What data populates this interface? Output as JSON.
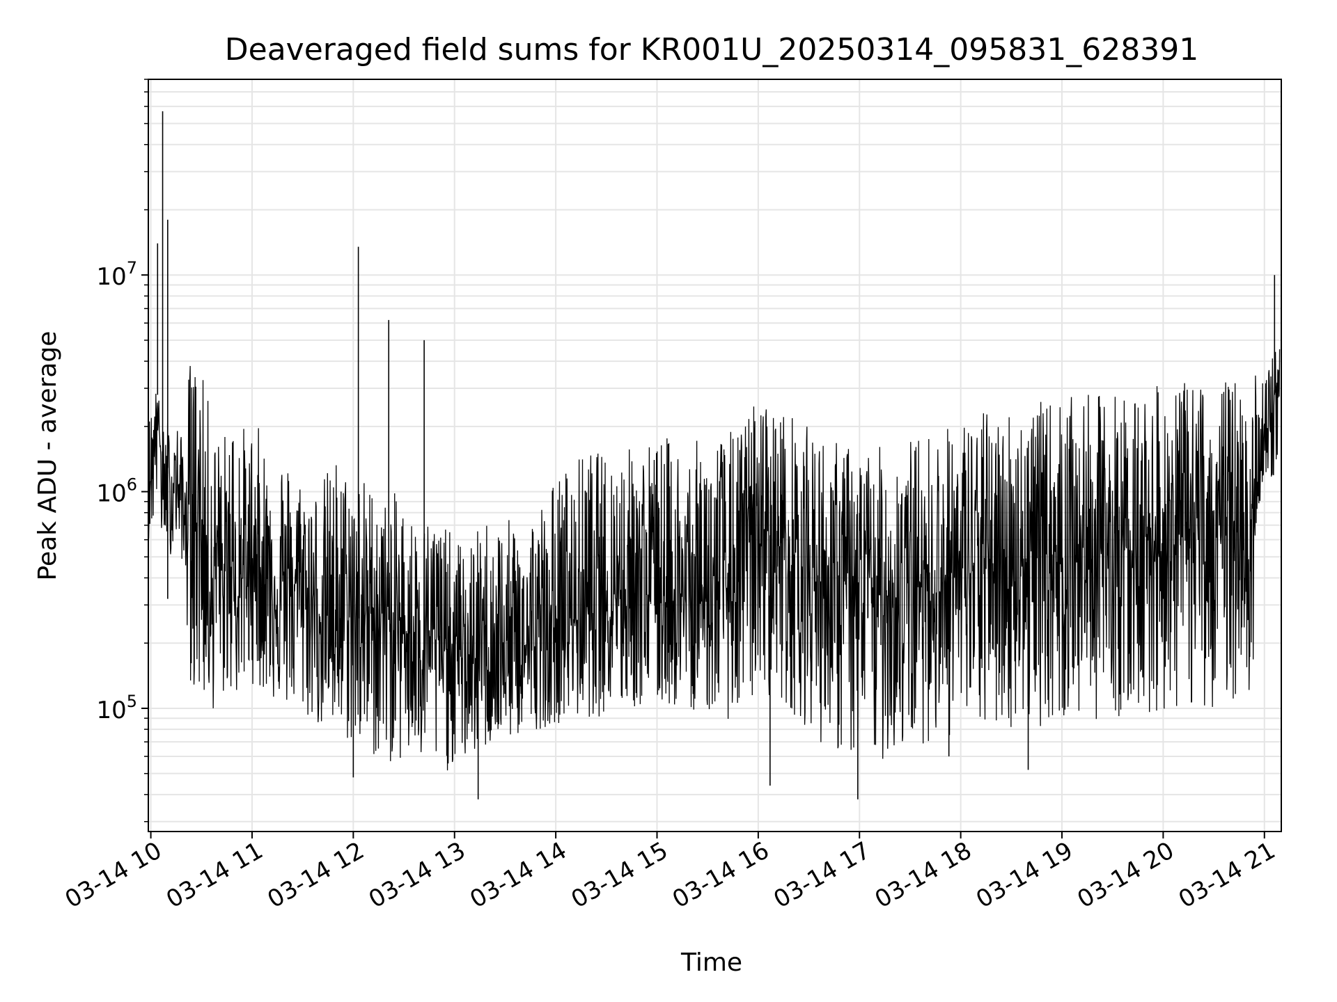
{
  "chart_data": {
    "type": "line",
    "title": "Deaveraged field sums for KR001U_20250314_095831_628391",
    "xlabel": "Time",
    "ylabel": "Peak ADU - average",
    "y_scale": "log",
    "xlim": [
      "2025-03-14 09:58:31",
      "2025-03-14 21:10:00"
    ],
    "ylim": [
      27000,
      80000000
    ],
    "grid": true,
    "line_color": "#000000",
    "grid_color": "#e5e5e5",
    "x_ticks": [
      {
        "value": "2025-03-14 10:00",
        "label": "03-14 10"
      },
      {
        "value": "2025-03-14 11:00",
        "label": "03-14 11"
      },
      {
        "value": "2025-03-14 12:00",
        "label": "03-14 12"
      },
      {
        "value": "2025-03-14 13:00",
        "label": "03-14 13"
      },
      {
        "value": "2025-03-14 14:00",
        "label": "03-14 14"
      },
      {
        "value": "2025-03-14 15:00",
        "label": "03-14 15"
      },
      {
        "value": "2025-03-14 16:00",
        "label": "03-14 16"
      },
      {
        "value": "2025-03-14 17:00",
        "label": "03-14 17"
      },
      {
        "value": "2025-03-14 18:00",
        "label": "03-14 18"
      },
      {
        "value": "2025-03-14 19:00",
        "label": "03-14 19"
      },
      {
        "value": "2025-03-14 20:00",
        "label": "03-14 20"
      },
      {
        "value": "2025-03-14 21:00",
        "label": "03-14 21"
      }
    ],
    "y_ticks": [
      {
        "value": 100000,
        "base": "10",
        "exp": "5"
      },
      {
        "value": 1000000,
        "base": "10",
        "exp": "6"
      },
      {
        "value": 10000000,
        "base": "10",
        "exp": "7"
      }
    ],
    "series": [
      {
        "x": [
          "2025-03-14 09:58:31",
          "2025-03-14 10:02",
          "2025-03-14 10:04",
          "2025-03-14 10:06",
          "2025-03-14 10:08",
          "2025-03-14 10:10",
          "2025-03-14 10:12",
          "2025-03-14 10:14",
          "2025-03-14 10:16",
          "2025-03-14 10:18",
          "2025-03-14 10:20",
          "2025-03-14 10:22",
          "2025-03-14 10:24",
          "2025-03-14 10:26",
          "2025-03-14 10:28",
          "2025-03-14 10:30",
          "2025-03-14 10:33",
          "2025-03-14 10:36",
          "2025-03-14 10:39",
          "2025-03-14 10:42",
          "2025-03-14 10:45",
          "2025-03-14 10:48",
          "2025-03-14 10:51",
          "2025-03-14 10:54",
          "2025-03-14 10:57",
          "2025-03-14 11:00",
          "2025-03-14 11:05",
          "2025-03-14 11:10",
          "2025-03-14 11:15",
          "2025-03-14 11:20",
          "2025-03-14 11:25",
          "2025-03-14 11:30",
          "2025-03-14 11:35",
          "2025-03-14 11:40",
          "2025-03-14 11:45",
          "2025-03-14 11:50",
          "2025-03-14 11:55",
          "2025-03-14 12:00",
          "2025-03-14 12:03",
          "2025-03-14 12:06",
          "2025-03-14 12:10",
          "2025-03-14 12:15",
          "2025-03-14 12:20",
          "2025-03-14 12:25",
          "2025-03-14 12:30",
          "2025-03-14 12:35",
          "2025-03-14 12:40",
          "2025-03-14 12:45",
          "2025-03-14 12:50",
          "2025-03-14 12:55",
          "2025-03-14 13:00",
          "2025-03-14 13:05",
          "2025-03-14 13:10",
          "2025-03-14 13:15",
          "2025-03-14 13:20",
          "2025-03-14 13:25",
          "2025-03-14 13:30",
          "2025-03-14 13:35",
          "2025-03-14 13:40",
          "2025-03-14 13:45",
          "2025-03-14 13:50",
          "2025-03-14 13:55",
          "2025-03-14 14:00",
          "2025-03-14 14:10",
          "2025-03-14 14:20",
          "2025-03-14 14:30",
          "2025-03-14 14:40",
          "2025-03-14 14:50",
          "2025-03-14 15:00",
          "2025-03-14 15:10",
          "2025-03-14 15:20",
          "2025-03-14 15:30",
          "2025-03-14 15:40",
          "2025-03-14 15:50",
          "2025-03-14 15:55",
          "2025-03-14 16:00",
          "2025-03-14 16:10",
          "2025-03-14 16:20",
          "2025-03-14 16:30",
          "2025-03-14 16:40",
          "2025-03-14 16:50",
          "2025-03-14 17:00",
          "2025-03-14 17:10",
          "2025-03-14 17:20",
          "2025-03-14 17:30",
          "2025-03-14 17:40",
          "2025-03-14 17:50",
          "2025-03-14 18:00",
          "2025-03-14 18:15",
          "2025-03-14 18:30",
          "2025-03-14 18:45",
          "2025-03-14 19:00",
          "2025-03-14 19:15",
          "2025-03-14 19:30",
          "2025-03-14 19:45",
          "2025-03-14 20:00",
          "2025-03-14 20:15",
          "2025-03-14 20:30",
          "2025-03-14 20:45",
          "2025-03-14 20:53",
          "2025-03-14 20:57",
          "2025-03-14 21:00",
          "2025-03-14 21:03",
          "2025-03-14 21:06",
          "2025-03-14 21:09"
        ],
        "values": [
          1000000,
          1600000,
          2800000,
          1300000,
          900000,
          1200000,
          800000,
          1400000,
          1000000,
          1100000,
          700000,
          800000,
          1100000,
          1000000,
          900000,
          700000,
          450000,
          350000,
          600000,
          300000,
          450000,
          500000,
          300000,
          400000,
          420000,
          500000,
          450000,
          400000,
          350000,
          320000,
          380000,
          360000,
          300000,
          280000,
          260000,
          270000,
          250000,
          300000,
          260000,
          240000,
          300000,
          280000,
          260000,
          240000,
          230000,
          220000,
          250000,
          230000,
          200000,
          190000,
          180000,
          170000,
          160000,
          175000,
          180000,
          170000,
          160000,
          170000,
          180000,
          190000,
          200000,
          210000,
          230000,
          260000,
          300000,
          350000,
          380000,
          360000,
          340000,
          320000,
          300000,
          330000,
          350000,
          400000,
          600000,
          700000,
          600000,
          500000,
          420000,
          380000,
          360000,
          340000,
          330000,
          340000,
          360000,
          380000,
          400000,
          420000,
          450000,
          480000,
          500000,
          520000,
          540000,
          560000,
          580000,
          600000,
          620000,
          650000,
          680000,
          700000,
          1200000,
          1500000,
          2000000,
          2800000,
          3200000
        ]
      }
    ],
    "envelope_upper": [
      2200000,
      3200000,
      2800000,
      2500000,
      1800000,
      2200000,
      1700000,
      1600000,
      2200000,
      1800000,
      1500000,
      3500000,
      4500000,
      4000000,
      3800000,
      3500000,
      3000000,
      2200000,
      1800000,
      2000000,
      1900000,
      2200000,
      3500000,
      2200000,
      1800000,
      2000000,
      2000000,
      1400000,
      1800000,
      1500000,
      1200000,
      1200000,
      1100000,
      1100000,
      1300000,
      1500000,
      1300000,
      1200000,
      1300000,
      1200000,
      1100000,
      1000000,
      900000,
      1000000,
      900000,
      800000,
      700000,
      800000,
      800000,
      700000,
      600000,
      600000,
      600000,
      700000,
      800000,
      800000,
      700000,
      800000,
      800000,
      850000,
      900000,
      1000000,
      1200000,
      1400000,
      1600000,
      1500000,
      1600000,
      1700000,
      1800000,
      1800000,
      1700000,
      1800000,
      1900000,
      2000000,
      2500000,
      2800000,
      2500000,
      2300000,
      2000000,
      1800000,
      1700000,
      1600000,
      1600000,
      1700000,
      1800000,
      1900000,
      2000000,
      2200000,
      2400000,
      2500000,
      2600000,
      2700000,
      2800000,
      2900000,
      3000000,
      3100000,
      3200000,
      3300000,
      3400000,
      3500000,
      3500000,
      3600000,
      4000000,
      4500000,
      5000000
    ],
    "envelope_lower": [
      600000,
      700000,
      900000,
      600000,
      550000,
      600000,
      500000,
      600000,
      550000,
      500000,
      400000,
      180000,
      120000,
      110000,
      100000,
      110000,
      100000,
      95000,
      100000,
      110000,
      110000,
      120000,
      110000,
      120000,
      130000,
      130000,
      120000,
      110000,
      105000,
      100000,
      95000,
      90000,
      85000,
      80000,
      75000,
      70000,
      70000,
      65000,
      65000,
      60000,
      60000,
      55000,
      55000,
      55000,
      55000,
      55000,
      52000,
      52000,
      50000,
      50000,
      55000,
      55000,
      60000,
      60000,
      65000,
      68000,
      70000,
      72000,
      75000,
      78000,
      80000,
      82000,
      85000,
      88000,
      90000,
      92000,
      95000,
      98000,
      100000,
      100000,
      98000,
      95000,
      90000,
      85000,
      100000,
      120000,
      110000,
      95000,
      80000,
      65000,
      60000,
      55000,
      55000,
      60000,
      65000,
      70000,
      72000,
      75000,
      78000,
      80000,
      82000,
      85000,
      88000,
      90000,
      92000,
      95000,
      98000,
      100000,
      110000,
      120000,
      800000,
      900000,
      1000000,
      1200000,
      1600000
    ],
    "spikes": [
      {
        "x": "2025-03-14 10:04",
        "value": 14000000
      },
      {
        "x": "2025-03-14 10:07",
        "value": 57000000
      },
      {
        "x": "2025-03-14 10:10",
        "value": 18000000
      },
      {
        "x": "2025-03-14 12:03",
        "value": 13500000
      },
      {
        "x": "2025-03-14 12:21",
        "value": 6200000
      },
      {
        "x": "2025-03-14 12:42",
        "value": 5000000
      },
      {
        "x": "2025-03-14 21:06",
        "value": 10000000
      },
      {
        "x": "2025-03-14 10:10",
        "value": 320000
      },
      {
        "x": "2025-03-14 12:00",
        "value": 48000
      },
      {
        "x": "2025-03-14 13:14",
        "value": 38000
      },
      {
        "x": "2025-03-14 16:07",
        "value": 44000
      },
      {
        "x": "2025-03-14 16:59",
        "value": 38000
      },
      {
        "x": "2025-03-14 17:53",
        "value": 60000
      },
      {
        "x": "2025-03-14 18:40",
        "value": 52000
      }
    ]
  }
}
